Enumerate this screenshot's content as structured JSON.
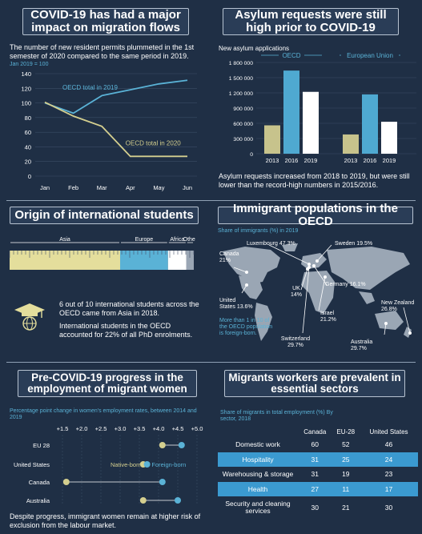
{
  "panel1": {
    "title": "COVID-19 has had a major impact on migration flows",
    "intro": "The number of new resident permits plummeted in the 1st semester of 2020 compared to the same period in 2019.",
    "index_note": "Jan 2019 = 100",
    "chart_data": {
      "type": "line",
      "categories": [
        "Jan",
        "Feb",
        "Mar",
        "Apr",
        "May",
        "Jun"
      ],
      "ylim": [
        0,
        140
      ],
      "yticks": [
        0,
        20,
        40,
        60,
        80,
        100,
        120,
        140
      ],
      "series": [
        {
          "name": "OECD total in 2019",
          "values": [
            100,
            86,
            110,
            118,
            126,
            131
          ],
          "color": "#5ab2d6"
        },
        {
          "name": "OECD total in 2020",
          "values": [
            101,
            82,
            68,
            27,
            27,
            27
          ],
          "color": "#d4cf8f"
        }
      ]
    }
  },
  "panel2": {
    "title": "Asylum requests were still high prior to COVID-19",
    "subtitle": "New asylum applications",
    "group_oecd": "OECD",
    "group_eu": "European Union",
    "chart_data": {
      "type": "bar",
      "ylim": [
        0,
        1800000
      ],
      "yticks": [
        "0",
        "300 000",
        "600 000",
        "900 000",
        "1 200 000",
        "1 500 000",
        "1 800 000"
      ],
      "ytick_values": [
        0,
        300000,
        600000,
        900000,
        1200000,
        1500000,
        1800000
      ],
      "groups": [
        {
          "name": "OECD",
          "bars": [
            {
              "x": "2013",
              "value": 560000,
              "color": "#c7c38c"
            },
            {
              "x": "2016",
              "value": 1640000,
              "color": "#4fa9d1"
            },
            {
              "x": "2019",
              "value": 1220000,
              "color": "#ffffff"
            }
          ]
        },
        {
          "name": "European Union",
          "bars": [
            {
              "x": "2013",
              "value": 380000,
              "color": "#c7c38c"
            },
            {
              "x": "2016",
              "value": 1170000,
              "color": "#4fa9d1"
            },
            {
              "x": "2019",
              "value": 630000,
              "color": "#ffffff"
            }
          ]
        }
      ]
    },
    "note": "Asylum requests increased from 2018 to 2019, but were still lower than the record-high numbers in 2015/2016."
  },
  "panel3": {
    "title": "Origin of international students",
    "ruler_labels": [
      "Asia",
      "Europe",
      "Africa",
      "Other"
    ],
    "ruler_shares": [
      0.6,
      0.26,
      0.1,
      0.04
    ],
    "ruler_colors": [
      "#e4de9c",
      "#5ab2d6",
      "#ffffff",
      "#9aa6b4"
    ],
    "stat1": "6 out of 10 international students across the OECD came from Asia in 2018.",
    "stat2": "International students in the OECD accounted for 22% of all PhD enrolments."
  },
  "panel4": {
    "title": "Immigrant populations in the OECD",
    "subtitle": "Share of immigrants (%) in 2019",
    "labels": [
      {
        "name": "Luxembourg",
        "value": "47.3%"
      },
      {
        "name": "Sweden",
        "value": "19.5%"
      },
      {
        "name": "Canada",
        "value": "21%"
      },
      {
        "name": "Germany",
        "value": "16.1%"
      },
      {
        "name": "UK",
        "value": "14%"
      },
      {
        "name": "United States",
        "value": "13.6%"
      },
      {
        "name": "Israel",
        "value": "21.2%"
      },
      {
        "name": "New Zealand",
        "value": "26.8%"
      },
      {
        "name": "Switzerland",
        "value": "29.7%"
      },
      {
        "name": "Australia",
        "value": "29.7%"
      }
    ],
    "callout": "More than 1 in 10 of the OECD population is foreign-born."
  },
  "panel5": {
    "title": "Pre-COVID-19 progress in the employment of migrant women",
    "subtitle": "Percentage point change in women's employment rates, between 2014 and 2019",
    "chart_data": {
      "type": "scatter",
      "xticks": [
        "+1.5",
        "+2.0",
        "+2.5",
        "+3.0",
        "+3.5",
        "+4.0",
        "+4.5",
        "+5.0"
      ],
      "xtick_values": [
        1.5,
        2.0,
        2.5,
        3.0,
        3.5,
        4.0,
        4.5,
        5.0
      ],
      "xlim": [
        1.5,
        5.0
      ],
      "categories": [
        "EU 28",
        "United States",
        "Canada",
        "Australia"
      ],
      "series": [
        {
          "name": "Native-born",
          "values": [
            4.1,
            3.6,
            1.6,
            3.6
          ],
          "color": "#d4cf8f"
        },
        {
          "name": "Foreign-born",
          "values": [
            4.6,
            3.7,
            4.1,
            4.5
          ],
          "color": "#5ab2d6"
        }
      ]
    },
    "note": "Despite progress, immigrant women remain at higher risk of exclusion from the labour market."
  },
  "panel6": {
    "title": "Migrants workers are prevalent in essential sectors",
    "subtitle": "Share of migrants in total employment (%) By sector, 2018",
    "columns": [
      "Canada",
      "EU-28",
      "United States"
    ],
    "rows": [
      {
        "sector": "Domestic work",
        "values": [
          "60",
          "52",
          "46"
        ],
        "highlight": false
      },
      {
        "sector": "Hospitality",
        "values": [
          "31",
          "25",
          "24"
        ],
        "highlight": true
      },
      {
        "sector": "Warehousing & storage",
        "values": [
          "31",
          "19",
          "23"
        ],
        "highlight": false
      },
      {
        "sector": "Health",
        "values": [
          "27",
          "11",
          "17"
        ],
        "highlight": true
      },
      {
        "sector": "Security and cleaning services",
        "values": [
          "30",
          "21",
          "30"
        ],
        "highlight": false
      }
    ]
  }
}
